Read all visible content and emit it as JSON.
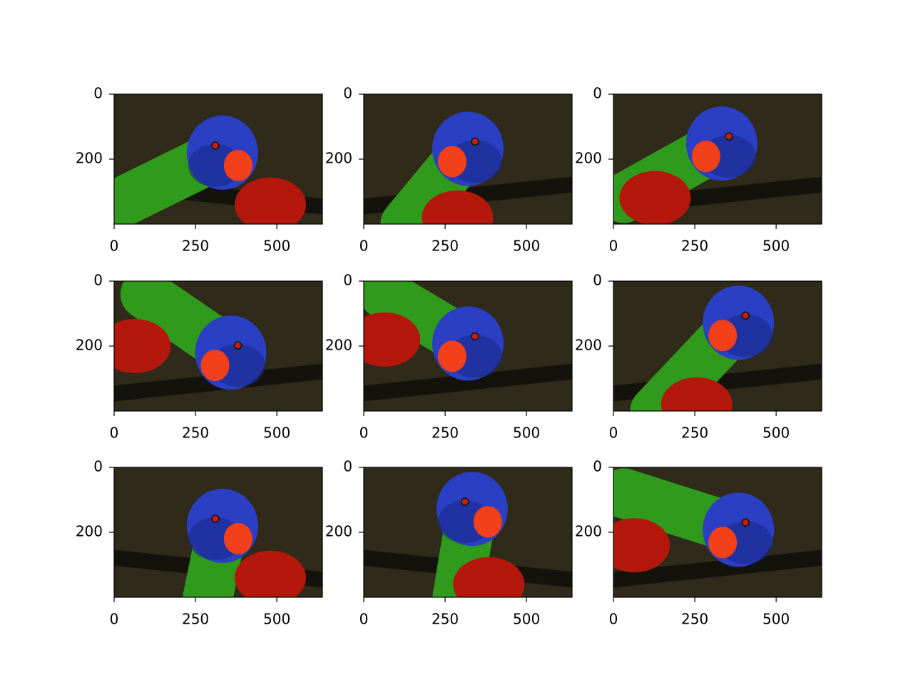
{
  "chart_data": [
    {
      "type": "image",
      "xlim": [
        0,
        640
      ],
      "ylim": [
        400,
        0
      ],
      "xticks": [
        0,
        250,
        500
      ],
      "yticks": [
        0,
        200
      ]
    },
    {
      "type": "image",
      "xlim": [
        0,
        640
      ],
      "ylim": [
        400,
        0
      ],
      "xticks": [
        0,
        250,
        500
      ],
      "yticks": [
        0,
        200
      ]
    },
    {
      "type": "image",
      "xlim": [
        0,
        640
      ],
      "ylim": [
        400,
        0
      ],
      "xticks": [
        0,
        250,
        500
      ],
      "yticks": [
        0,
        200
      ]
    },
    {
      "type": "image",
      "xlim": [
        0,
        640
      ],
      "ylim": [
        400,
        0
      ],
      "xticks": [
        0,
        250,
        500
      ],
      "yticks": [
        0,
        200
      ]
    },
    {
      "type": "image",
      "xlim": [
        0,
        640
      ],
      "ylim": [
        400,
        0
      ],
      "xticks": [
        0,
        250,
        500
      ],
      "yticks": [
        0,
        200
      ]
    },
    {
      "type": "image",
      "xlim": [
        0,
        640
      ],
      "ylim": [
        400,
        0
      ],
      "xticks": [
        0,
        250,
        500
      ],
      "yticks": [
        0,
        200
      ]
    },
    {
      "type": "image",
      "xlim": [
        0,
        640
      ],
      "ylim": [
        400,
        0
      ],
      "xticks": [
        0,
        250,
        500
      ],
      "yticks": [
        0,
        200
      ]
    },
    {
      "type": "image",
      "xlim": [
        0,
        640
      ],
      "ylim": [
        400,
        0
      ],
      "xticks": [
        0,
        250,
        500
      ],
      "yticks": [
        0,
        200
      ]
    },
    {
      "type": "image",
      "xlim": [
        0,
        640
      ],
      "ylim": [
        400,
        0
      ],
      "xticks": [
        0,
        250,
        500
      ],
      "yticks": [
        0,
        200
      ]
    }
  ]
}
